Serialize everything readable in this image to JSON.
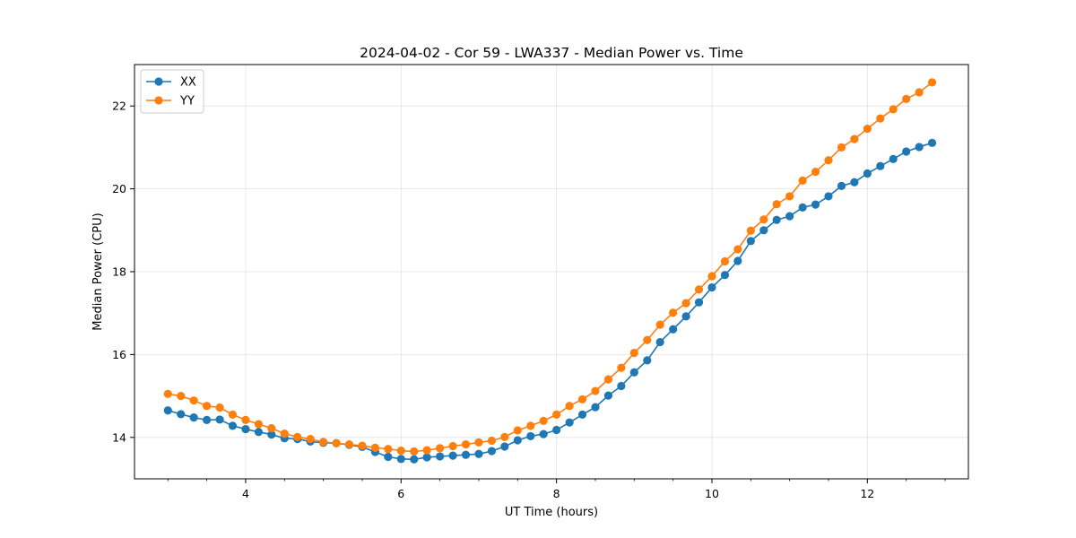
{
  "chart_data": {
    "type": "line",
    "title": "2024-04-02 - Cor 59 - LWA337 - Median Power vs. Time",
    "xlabel": "UT Time (hours)",
    "ylabel": "Median Power (CPU)",
    "xlim": [
      2.57,
      13.3
    ],
    "ylim": [
      13.0,
      23.0
    ],
    "xticks": [
      4,
      6,
      8,
      10,
      12
    ],
    "xtick_labels": [
      "4",
      "6",
      "8",
      "10",
      "12"
    ],
    "yticks": [
      14,
      16,
      18,
      20,
      22
    ],
    "ytick_labels": [
      "14",
      "16",
      "18",
      "20",
      "22"
    ],
    "grid": true,
    "legend_position": "upper-left",
    "x": [
      3.0,
      3.167,
      3.333,
      3.5,
      3.667,
      3.833,
      4.0,
      4.167,
      4.333,
      4.5,
      4.667,
      4.833,
      5.0,
      5.167,
      5.333,
      5.5,
      5.667,
      5.833,
      6.0,
      6.167,
      6.333,
      6.5,
      6.667,
      6.833,
      7.0,
      7.167,
      7.333,
      7.5,
      7.667,
      7.833,
      8.0,
      8.167,
      8.333,
      8.5,
      8.667,
      8.833,
      9.0,
      9.167,
      9.333,
      9.5,
      9.667,
      9.833,
      10.0,
      10.167,
      10.333,
      10.5,
      10.667,
      10.833,
      11.0,
      11.167,
      11.333,
      11.5,
      11.667,
      11.833,
      12.0,
      12.167,
      12.333,
      12.5,
      12.667,
      12.833
    ],
    "series": [
      {
        "name": "XX",
        "color": "#1f77b4",
        "values": [
          14.65,
          14.56,
          14.48,
          14.42,
          14.43,
          14.28,
          14.2,
          14.13,
          14.07,
          13.98,
          13.96,
          13.9,
          13.87,
          13.86,
          13.82,
          13.77,
          13.65,
          13.53,
          13.48,
          13.47,
          13.52,
          13.54,
          13.56,
          13.58,
          13.6,
          13.67,
          13.78,
          13.93,
          14.03,
          14.08,
          14.18,
          14.36,
          14.55,
          14.73,
          15.01,
          15.24,
          15.57,
          15.86,
          16.3,
          16.61,
          16.92,
          17.26,
          17.62,
          17.92,
          18.26,
          18.74,
          19.0,
          19.25,
          19.34,
          19.55,
          19.62,
          19.82,
          20.07,
          20.16,
          20.37,
          20.55,
          20.72,
          20.9,
          21.01,
          21.11
        ]
      },
      {
        "name": "YY",
        "color": "#ff7f0e",
        "values": [
          15.05,
          15.0,
          14.89,
          14.76,
          14.72,
          14.55,
          14.42,
          14.32,
          14.22,
          14.09,
          14.01,
          13.96,
          13.89,
          13.86,
          13.83,
          13.8,
          13.75,
          13.72,
          13.68,
          13.66,
          13.69,
          13.74,
          13.79,
          13.83,
          13.88,
          13.92,
          14.01,
          14.17,
          14.28,
          14.4,
          14.55,
          14.76,
          14.92,
          15.12,
          15.4,
          15.68,
          16.04,
          16.35,
          16.72,
          17.01,
          17.24,
          17.57,
          17.89,
          18.25,
          18.54,
          18.99,
          19.26,
          19.63,
          19.82,
          20.2,
          20.41,
          20.69,
          21.0,
          21.2,
          21.45,
          21.7,
          21.92,
          22.17,
          22.33,
          22.57
        ]
      }
    ]
  }
}
